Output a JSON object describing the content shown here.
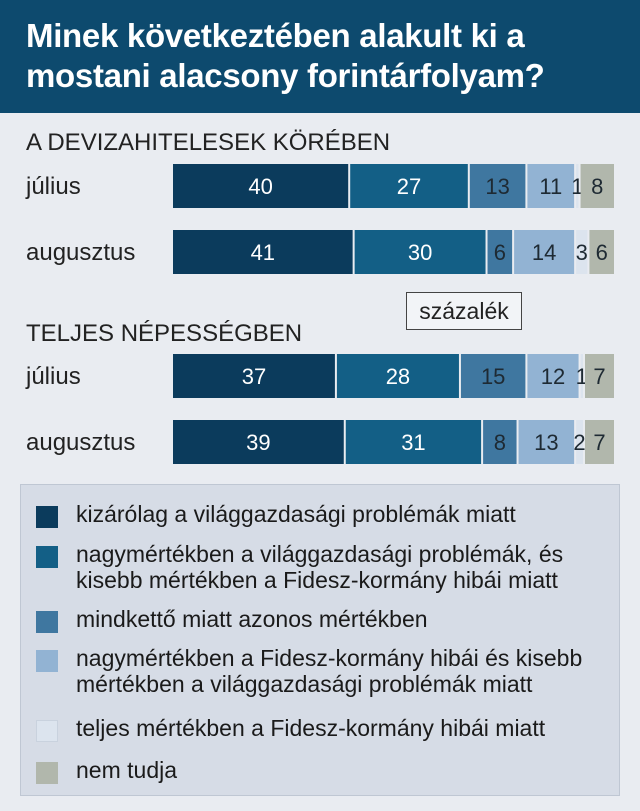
{
  "title": "Minek következtében alakult ki a mostani alacsony forintárfolyam?",
  "unit_label": "százalék",
  "colors": [
    "#0b3b5c",
    "#135f86",
    "#3f77a0",
    "#92b3d3",
    "#dce4ee",
    "#b1b7ac"
  ],
  "chart_data": {
    "type": "bar",
    "stacked": true,
    "orientation": "horizontal",
    "unit": "százalék",
    "groups": [
      {
        "title": "A DEVIZAHITELESEK KÖRÉBEN",
        "rows": [
          {
            "label": "július",
            "values": [
              40,
              27,
              13,
              11,
              1,
              8
            ]
          },
          {
            "label": "augusztus",
            "values": [
              41,
              30,
              6,
              14,
              3,
              6
            ]
          }
        ]
      },
      {
        "title": "TELJES NÉPESSÉGBEN",
        "rows": [
          {
            "label": "július",
            "values": [
              37,
              28,
              15,
              12,
              1,
              7
            ]
          },
          {
            "label": "augusztus",
            "values": [
              39,
              31,
              8,
              13,
              2,
              7
            ]
          }
        ]
      }
    ],
    "legend": [
      "kizárólag a világgazdasági problémák miatt",
      "nagymértékben a világgazdasági problémák, és kisebb mértékben a Fidesz-kormány hibái miatt",
      "mindkettő miatt azonos mértékben",
      "nagymértékben a Fidesz-kormány hibái és kisebb mértékben a világgazdasági problémák miatt",
      "teljes mértékben a Fidesz-kormány hibái miatt",
      "nem tudja"
    ]
  }
}
